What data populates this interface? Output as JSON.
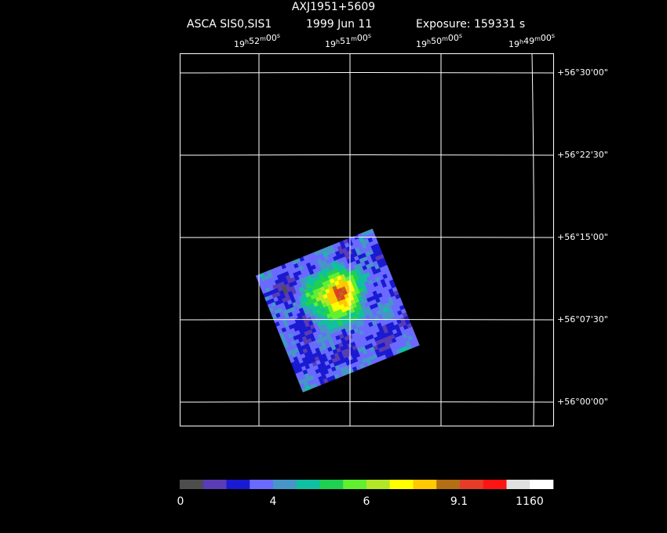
{
  "header": {
    "title": "AXJ1951+5609",
    "instrument": "ASCA SIS0,SIS1",
    "date": "1999 Jun 11",
    "exposure": "Exposure: 159331 s"
  },
  "ra_units": [
    "h",
    "m",
    "s"
  ],
  "ra_labels": [
    {
      "hours": "19",
      "minutes": "52",
      "seconds": "00"
    },
    {
      "hours": "19",
      "minutes": "51",
      "seconds": "00"
    },
    {
      "hours": "19",
      "minutes": "50",
      "seconds": "00"
    },
    {
      "hours": "19",
      "minutes": "49",
      "seconds": "00"
    }
  ],
  "dec_labels": [
    "+56°30'00\"",
    "+56°22'30\"",
    "+56°15'00\"",
    "+56°07'30\"",
    "+56°00'00\""
  ],
  "colorbar": {
    "colors": [
      "#4d4d4d",
      "#5a3cb4",
      "#1a1ad2",
      "#6a6aff",
      "#4696c8",
      "#10c0a0",
      "#20d050",
      "#60f030",
      "#b4e628",
      "#ffff00",
      "#ffc800",
      "#b46e14",
      "#e63c28",
      "#ff1414",
      "#e0e0e0",
      "#ffffff"
    ],
    "labels": [
      "0",
      "4",
      "6",
      "9.1",
      "1160"
    ]
  }
}
